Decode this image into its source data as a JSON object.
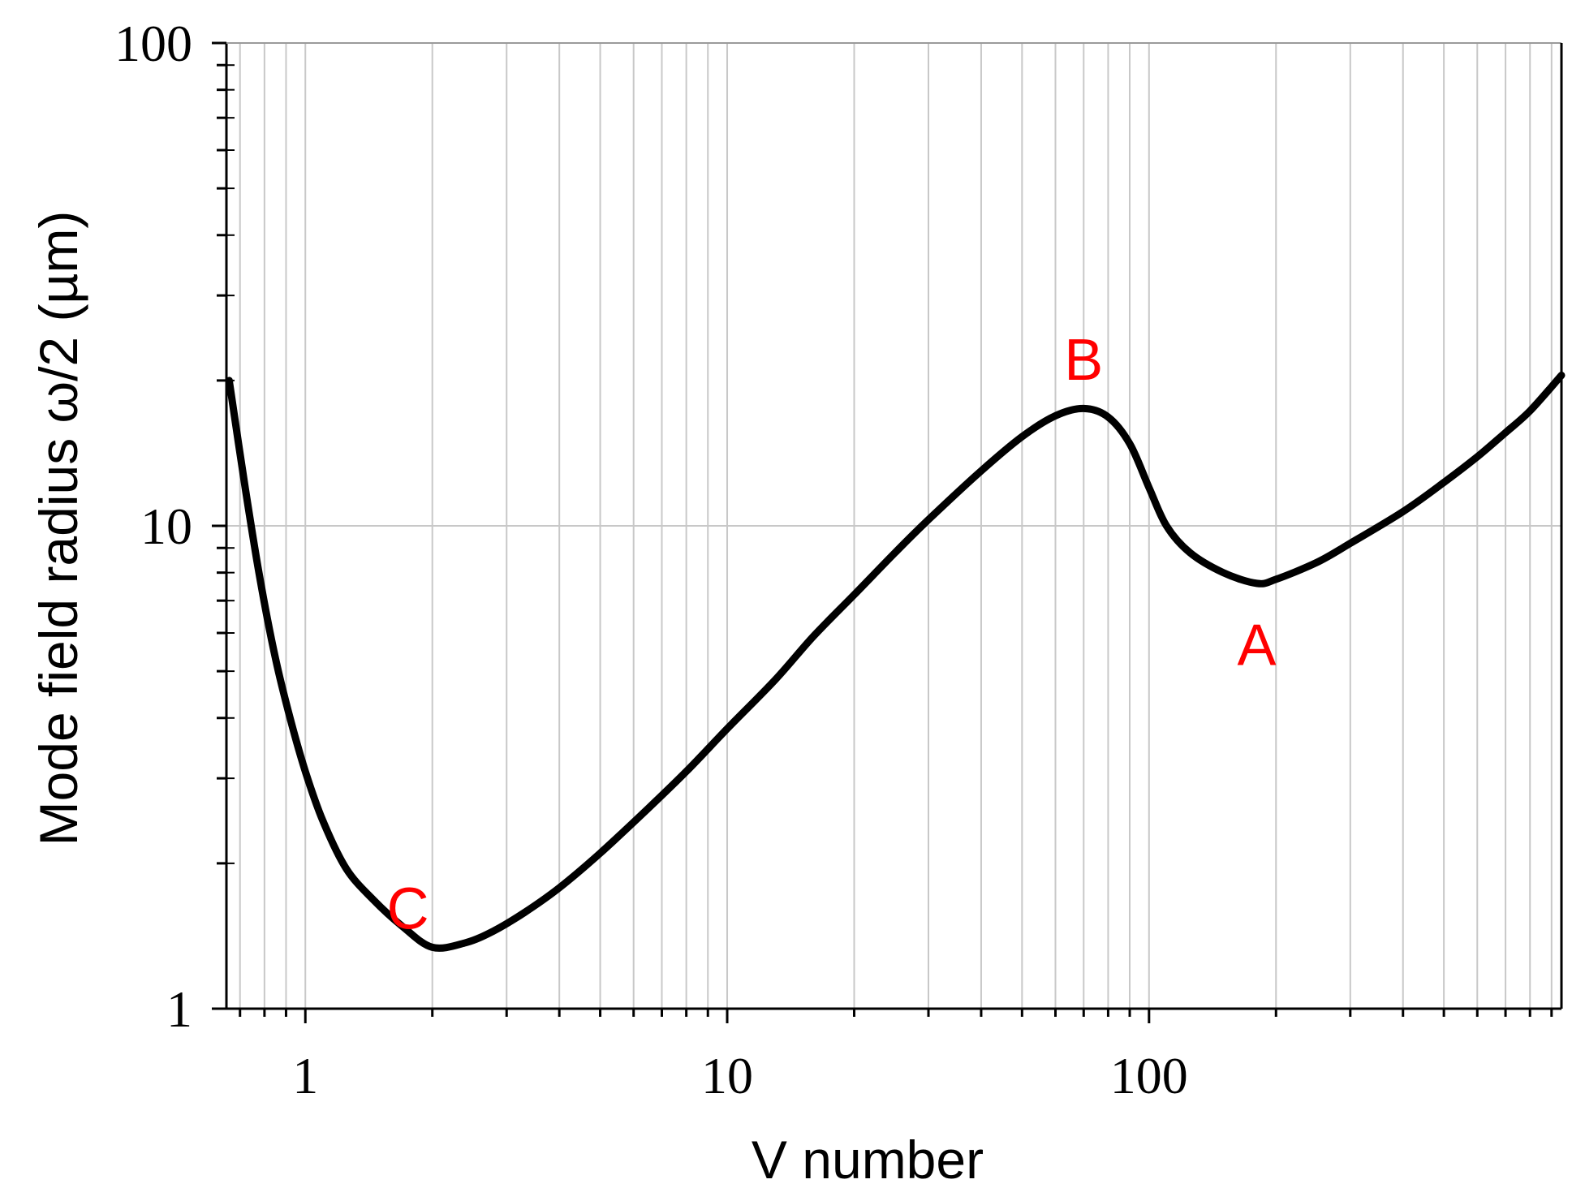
{
  "chart_data": {
    "type": "line",
    "title": "",
    "xlabel": "V number",
    "ylabel": "Mode field radius ω/2 (µm)",
    "xscale": "log",
    "yscale": "log",
    "xlim": [
      0.65,
      950
    ],
    "ylim": [
      1,
      100
    ],
    "grid": true,
    "x_ticks": [
      {
        "value": 1,
        "label": "1"
      },
      {
        "value": 10,
        "label": "10"
      },
      {
        "value": 100,
        "label": "100"
      }
    ],
    "y_ticks": [
      {
        "value": 1,
        "label": "1"
      },
      {
        "value": 10,
        "label": "10"
      },
      {
        "value": 100,
        "label": "100"
      }
    ],
    "line_color": "#000000",
    "annotation_color": "#ff0000",
    "series": [
      {
        "x": [
          0.66,
          0.72,
          0.78,
          0.85,
          0.92,
          1.0,
          1.1,
          1.25,
          1.45,
          1.7,
          2.0,
          2.4,
          2.8,
          3.3,
          4.0,
          5.0,
          6.5,
          8.0,
          10,
          13,
          16,
          20,
          25,
          30,
          40,
          50,
          60,
          70,
          80,
          90,
          100,
          110,
          125,
          150,
          180,
          200,
          250,
          300,
          400,
          500,
          600,
          700,
          800,
          950
        ],
        "y": [
          20,
          12,
          7.8,
          5.3,
          4.0,
          3.1,
          2.45,
          1.95,
          1.68,
          1.48,
          1.34,
          1.37,
          1.45,
          1.58,
          1.78,
          2.1,
          2.6,
          3.1,
          3.8,
          4.8,
          5.9,
          7.2,
          8.8,
          10.3,
          13.0,
          15.3,
          16.9,
          17.5,
          16.8,
          14.8,
          12.0,
          10.0,
          8.8,
          8.0,
          7.6,
          7.75,
          8.4,
          9.2,
          10.7,
          12.3,
          13.9,
          15.6,
          17.3,
          20.5
        ]
      }
    ],
    "annotations": [
      {
        "text": "A",
        "x": 180,
        "y": 5.7
      },
      {
        "text": "B",
        "x": 70,
        "y": 22.2
      },
      {
        "text": "C",
        "x": 1.75,
        "y": 1.62
      }
    ]
  }
}
